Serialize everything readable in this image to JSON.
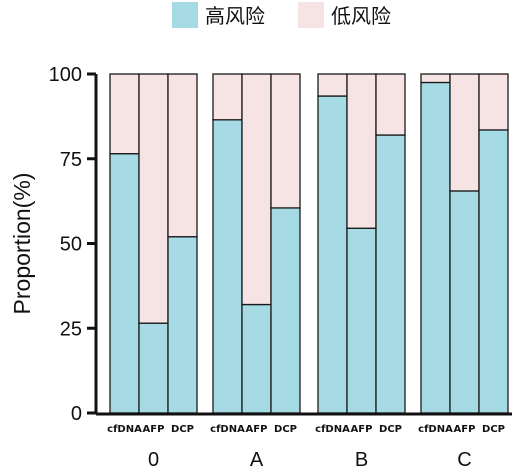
{
  "chart_data": {
    "type": "bar",
    "stacked": true,
    "normalized": true,
    "ylabel": "Proportion(%)",
    "ylim": [
      0,
      100
    ],
    "yticks": [
      "0",
      "25",
      "50",
      "75",
      "100"
    ],
    "groups": [
      {
        "name": "0",
        "bars": [
          {
            "label": "cfDNA",
            "values": [
              76.5,
              23.5
            ]
          },
          {
            "label": "AFP",
            "values": [
              26.5,
              73.5
            ]
          },
          {
            "label": "DCP",
            "values": [
              52.0,
              48.0
            ]
          }
        ]
      },
      {
        "name": "A",
        "bars": [
          {
            "label": "cfDNA",
            "values": [
              86.5,
              13.5
            ]
          },
          {
            "label": "AFP",
            "values": [
              32.0,
              68.0
            ]
          },
          {
            "label": "DCP",
            "values": [
              60.5,
              39.5
            ]
          }
        ]
      },
      {
        "name": "B",
        "bars": [
          {
            "label": "cfDNA",
            "values": [
              93.5,
              6.5
            ]
          },
          {
            "label": "AFP",
            "values": [
              54.5,
              45.5
            ]
          },
          {
            "label": "DCP",
            "values": [
              82.0,
              18.0
            ]
          }
        ]
      },
      {
        "name": "C",
        "bars": [
          {
            "label": "cfDNA",
            "values": [
              97.5,
              2.5
            ]
          },
          {
            "label": "AFP",
            "values": [
              65.5,
              34.5
            ]
          },
          {
            "label": "DCP",
            "values": [
              83.5,
              16.5
            ]
          }
        ]
      }
    ],
    "series": [
      {
        "name": "高风险",
        "color": "#a6dbe6"
      },
      {
        "name": "低风险",
        "color": "#f6e3e4"
      }
    ],
    "legend_position": "top",
    "grid": false
  }
}
